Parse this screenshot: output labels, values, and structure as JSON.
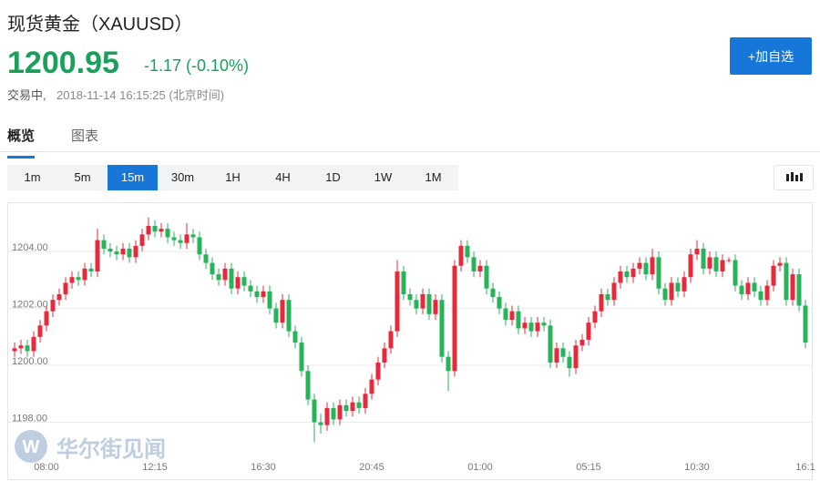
{
  "header": {
    "title": "现货黄金（XAUUSD）",
    "price": 1200.95,
    "change": "-1.17 (-0.10%)",
    "status": "交易中,",
    "time": "2018-11-14 16:15:25 (北京时间)",
    "button": "+加自选"
  },
  "tabs": [
    "概览",
    "图表"
  ],
  "intervals": [
    "1m",
    "5m",
    "15m",
    "30m",
    "1H",
    "4H",
    "1D",
    "1W",
    "1M"
  ],
  "active_interval": "15m",
  "watermark": "华尔街见闻",
  "chart_data": {
    "type": "candlestick",
    "up_color": "#e8283b",
    "down_color": "#27b35a",
    "grid": true,
    "ylim": [
      1196.0,
      1205.7
    ],
    "yticks": [
      {
        "value": 1198,
        "label": "1198.00"
      },
      {
        "value": 1200,
        "label": "1200.00"
      },
      {
        "value": 1202,
        "label": "1202.00"
      },
      {
        "value": 1204,
        "label": "1204.00"
      }
    ],
    "xticks": [
      {
        "value": 5,
        "label": "08:00"
      },
      {
        "value": 22,
        "label": "12:15"
      },
      {
        "value": 39,
        "label": "16:30"
      },
      {
        "value": 56,
        "label": "20:45"
      },
      {
        "value": 73,
        "label": "01:00"
      },
      {
        "value": 90,
        "label": "05:15"
      },
      {
        "value": 107,
        "label": "10:30"
      },
      {
        "value": 124,
        "label": "16:1"
      }
    ],
    "open": [
      1200.5,
      1200.6,
      1200.7,
      1200.5,
      1201.0,
      1201.4,
      1201.9,
      1202.3,
      1202.5,
      1202.9,
      1203.1,
      1203.0,
      1203.4,
      1203.3,
      1204.4,
      1204.1,
      1204.0,
      1203.9,
      1204.1,
      1203.8,
      1204.2,
      1204.6,
      1204.9,
      1204.7,
      1204.8,
      1204.5,
      1204.4,
      1204.3,
      1204.6,
      1204.5,
      1203.9,
      1203.6,
      1203.2,
      1203.0,
      1203.4,
      1202.7,
      1203.1,
      1202.8,
      1202.6,
      1202.4,
      1202.6,
      1202.0,
      1201.5,
      1202.3,
      1201.2,
      1200.8,
      1199.8,
      1198.8,
      1198.0,
      1197.9,
      1198.5,
      1198.1,
      1198.6,
      1198.4,
      1198.7,
      1198.5,
      1199.0,
      1199.5,
      1200.1,
      1200.6,
      1201.2,
      1203.3,
      1202.5,
      1202.3,
      1202.0,
      1202.5,
      1201.8,
      1202.3,
      1200.3,
      1199.8,
      1203.5,
      1204.2,
      1203.8,
      1203.3,
      1203.5,
      1202.7,
      1202.4,
      1202.0,
      1201.6,
      1201.9,
      1201.3,
      1201.5,
      1201.2,
      1201.5,
      1201.4,
      1200.1,
      1200.6,
      1200.3,
      1199.9,
      1200.7,
      1200.9,
      1201.5,
      1201.9,
      1202.5,
      1202.3,
      1202.9,
      1203.3,
      1203.1,
      1203.4,
      1203.6,
      1203.2,
      1203.8,
      1202.7,
      1202.3,
      1202.9,
      1202.6,
      1203.1,
      1203.9,
      1204.1,
      1203.4,
      1203.8,
      1203.3,
      1203.7,
      1203.7,
      1202.8,
      1202.5,
      1202.9,
      1202.6,
      1202.3,
      1202.8,
      1203.5,
      1203.6,
      1202.3,
      1203.2,
      1202.1
    ],
    "high": [
      1200.8,
      1200.9,
      1200.9,
      1201.2,
      1201.6,
      1202.1,
      1202.5,
      1202.7,
      1203.1,
      1203.3,
      1203.3,
      1203.6,
      1203.6,
      1204.8,
      1204.6,
      1204.3,
      1204.2,
      1204.3,
      1204.3,
      1204.4,
      1204.8,
      1205.2,
      1205.1,
      1205.0,
      1205.0,
      1204.7,
      1204.6,
      1205.0,
      1204.8,
      1204.7,
      1204.1,
      1203.8,
      1203.4,
      1203.6,
      1203.6,
      1203.3,
      1203.3,
      1203.0,
      1202.8,
      1202.8,
      1202.8,
      1202.2,
      1202.5,
      1202.5,
      1201.4,
      1201.0,
      1200.0,
      1199.0,
      1198.3,
      1198.7,
      1198.7,
      1198.8,
      1198.8,
      1198.9,
      1198.9,
      1199.2,
      1199.7,
      1200.3,
      1200.8,
      1201.4,
      1203.7,
      1203.5,
      1202.7,
      1202.5,
      1202.7,
      1202.7,
      1202.5,
      1202.5,
      1200.5,
      1203.7,
      1204.4,
      1204.4,
      1204.0,
      1203.7,
      1203.7,
      1202.9,
      1202.6,
      1202.2,
      1202.1,
      1202.1,
      1201.7,
      1201.7,
      1201.7,
      1201.7,
      1201.6,
      1200.8,
      1200.8,
      1200.5,
      1200.9,
      1201.1,
      1201.7,
      1202.1,
      1202.7,
      1202.7,
      1203.1,
      1203.5,
      1203.5,
      1203.6,
      1203.8,
      1203.8,
      1204.1,
      1204.0,
      1202.9,
      1203.1,
      1203.1,
      1203.3,
      1204.1,
      1204.4,
      1204.3,
      1204.0,
      1204.0,
      1203.9,
      1203.8,
      1203.9,
      1203.0,
      1203.1,
      1203.1,
      1202.8,
      1203.0,
      1203.7,
      1203.8,
      1203.8,
      1203.4,
      1203.4,
      1202.3
    ],
    "low": [
      1200.3,
      1200.4,
      1200.3,
      1200.3,
      1200.8,
      1201.2,
      1201.7,
      1202.1,
      1202.3,
      1202.7,
      1202.8,
      1202.8,
      1203.1,
      1203.1,
      1203.9,
      1203.8,
      1203.7,
      1203.7,
      1203.6,
      1203.6,
      1204.0,
      1204.4,
      1204.5,
      1204.5,
      1204.3,
      1204.2,
      1204.1,
      1204.1,
      1204.3,
      1203.7,
      1203.4,
      1203.0,
      1202.8,
      1202.8,
      1202.5,
      1202.5,
      1202.6,
      1202.4,
      1202.2,
      1202.2,
      1201.8,
      1201.3,
      1201.3,
      1201.0,
      1200.6,
      1199.6,
      1198.6,
      1197.3,
      1197.6,
      1197.7,
      1197.9,
      1197.9,
      1198.2,
      1198.2,
      1198.3,
      1198.3,
      1198.8,
      1199.3,
      1199.9,
      1200.4,
      1201.0,
      1202.3,
      1202.1,
      1201.8,
      1201.8,
      1201.6,
      1201.6,
      1200.1,
      1199.1,
      1199.6,
      1203.3,
      1203.6,
      1203.1,
      1203.1,
      1202.5,
      1202.2,
      1201.8,
      1201.4,
      1201.4,
      1201.1,
      1201.1,
      1201.0,
      1201.0,
      1201.2,
      1199.9,
      1199.9,
      1200.1,
      1199.6,
      1199.7,
      1200.5,
      1200.7,
      1201.3,
      1201.7,
      1202.1,
      1202.1,
      1202.7,
      1202.9,
      1202.9,
      1203.2,
      1203.0,
      1203.0,
      1202.5,
      1202.1,
      1202.1,
      1202.4,
      1202.4,
      1202.9,
      1203.7,
      1203.2,
      1203.2,
      1203.1,
      1203.1,
      1203.6,
      1202.6,
      1202.3,
      1202.3,
      1202.4,
      1202.1,
      1202.1,
      1202.6,
      1203.3,
      1202.1,
      1202.1,
      1201.9,
      1200.6
    ],
    "close": [
      1200.6,
      1200.7,
      1200.5,
      1201.0,
      1201.4,
      1201.9,
      1202.3,
      1202.5,
      1202.9,
      1203.1,
      1203.0,
      1203.4,
      1203.3,
      1204.4,
      1204.1,
      1204.0,
      1203.9,
      1204.1,
      1203.8,
      1204.2,
      1204.6,
      1204.9,
      1204.7,
      1204.8,
      1204.5,
      1204.4,
      1204.3,
      1204.6,
      1204.5,
      1203.9,
      1203.6,
      1203.2,
      1203.0,
      1203.4,
      1202.7,
      1203.1,
      1202.8,
      1202.6,
      1202.4,
      1202.6,
      1202.0,
      1201.5,
      1202.3,
      1201.2,
      1200.8,
      1199.8,
      1198.8,
      1198.0,
      1197.9,
      1198.5,
      1198.1,
      1198.6,
      1198.4,
      1198.7,
      1198.5,
      1199.0,
      1199.5,
      1200.1,
      1200.6,
      1201.2,
      1203.3,
      1202.5,
      1202.3,
      1202.0,
      1202.5,
      1201.8,
      1202.3,
      1200.3,
      1199.8,
      1203.5,
      1204.2,
      1203.8,
      1203.3,
      1203.5,
      1202.7,
      1202.4,
      1202.0,
      1201.6,
      1201.9,
      1201.3,
      1201.5,
      1201.2,
      1201.5,
      1201.4,
      1200.1,
      1200.6,
      1200.3,
      1199.9,
      1200.7,
      1200.9,
      1201.5,
      1201.9,
      1202.5,
      1202.3,
      1202.9,
      1203.3,
      1203.1,
      1203.4,
      1203.6,
      1203.2,
      1203.8,
      1202.7,
      1202.3,
      1202.9,
      1202.6,
      1203.1,
      1203.9,
      1204.1,
      1203.4,
      1203.8,
      1203.3,
      1203.7,
      1203.7,
      1202.8,
      1202.5,
      1202.9,
      1202.6,
      1202.3,
      1202.8,
      1203.5,
      1203.6,
      1202.3,
      1203.2,
      1202.1,
      1200.8
    ]
  }
}
